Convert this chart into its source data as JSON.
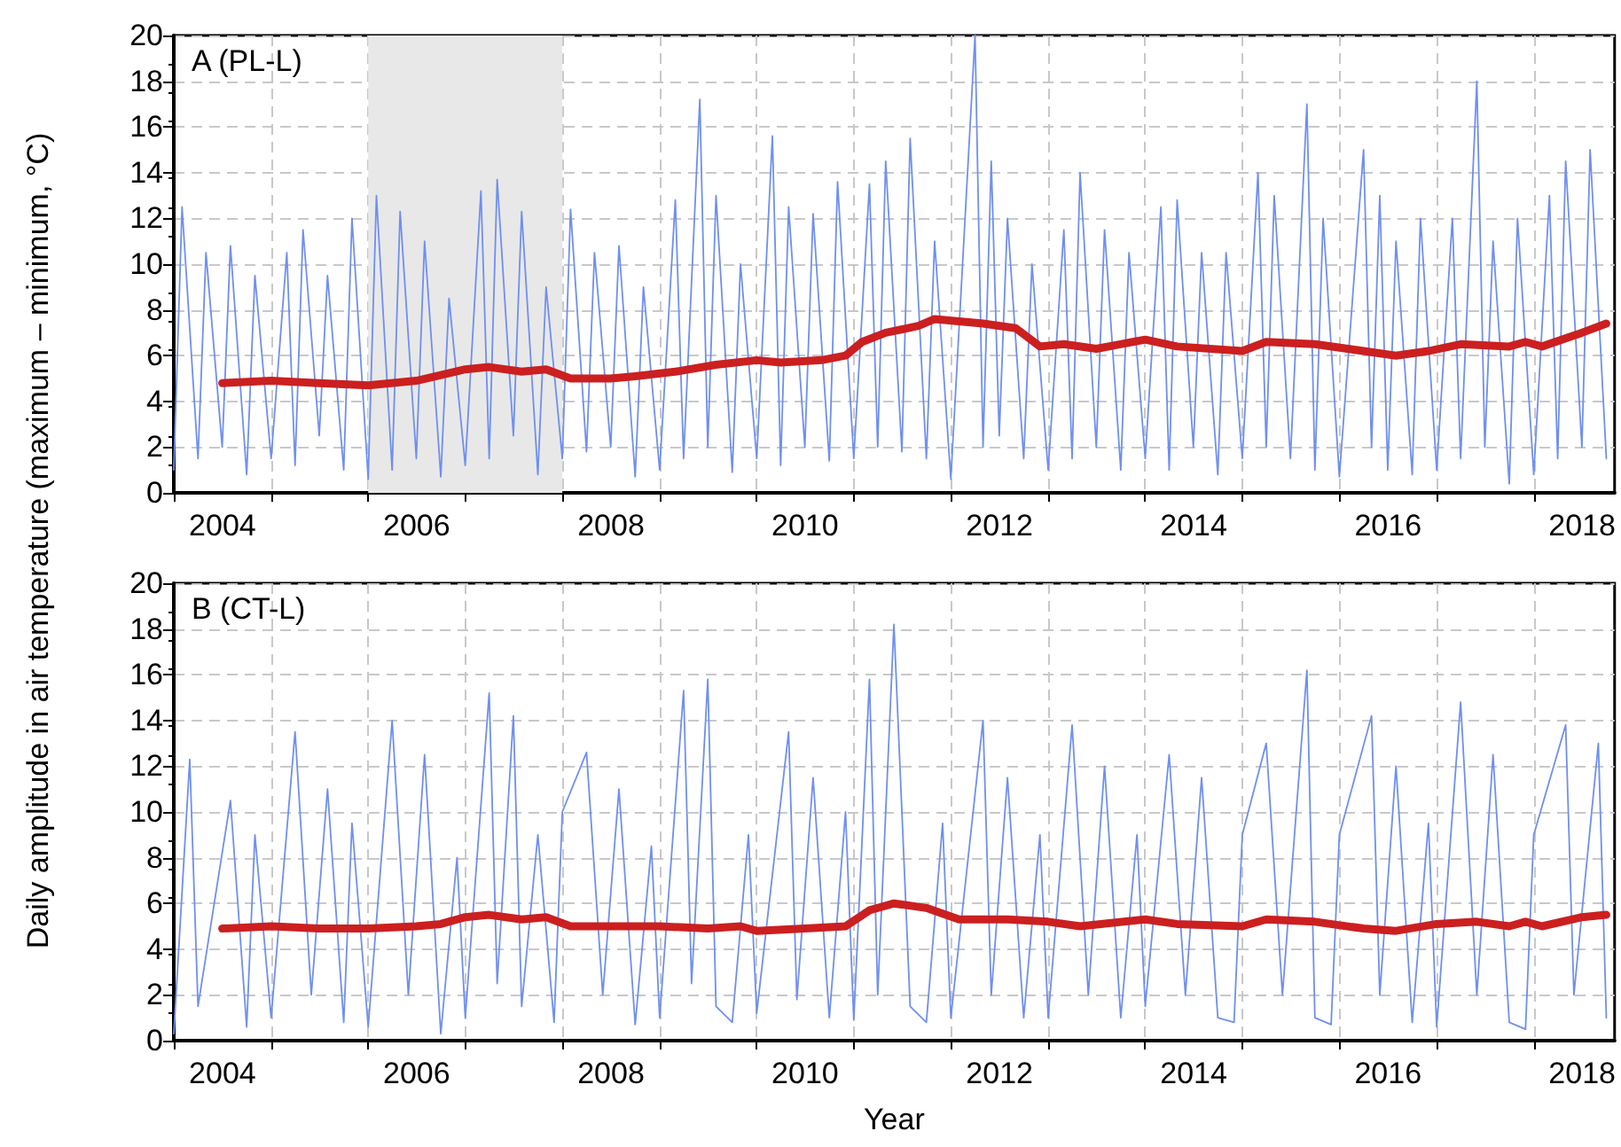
{
  "chart_data": [
    {
      "type": "line",
      "ylabel": "Daily amplitude in air temperature (maximum – minimum, °C)",
      "annotations": [
        "A (PL-L)"
      ],
      "xlim": [
        "2004-01-01",
        "2018-11-01"
      ],
      "ylim": [
        0,
        20
      ],
      "yticks": [
        0,
        2,
        4,
        6,
        8,
        10,
        12,
        14,
        16,
        18,
        20
      ],
      "xticks": [
        {
          "value": "2004-01-01",
          "label": null
        },
        {
          "value": "2004-07-02",
          "label": "2004"
        },
        {
          "value": "2005-01-01",
          "label": null
        },
        {
          "value": "2006-01-01",
          "label": null
        },
        {
          "value": "2006-07-02",
          "label": "2006"
        },
        {
          "value": "2007-01-01",
          "label": null
        },
        {
          "value": "2008-01-01",
          "label": null
        },
        {
          "value": "2008-07-02",
          "label": "2008"
        },
        {
          "value": "2009-01-01",
          "label": null
        },
        {
          "value": "2010-01-01",
          "label": null
        },
        {
          "value": "2010-07-02",
          "label": "2010"
        },
        {
          "value": "2011-01-01",
          "label": null
        },
        {
          "value": "2012-01-01",
          "label": null
        },
        {
          "value": "2012-07-02",
          "label": "2012"
        },
        {
          "value": "2013-01-01",
          "label": null
        },
        {
          "value": "2014-01-01",
          "label": null
        },
        {
          "value": "2014-07-02",
          "label": "2014"
        },
        {
          "value": "2015-01-01",
          "label": null
        },
        {
          "value": "2016-01-01",
          "label": null
        },
        {
          "value": "2016-07-02",
          "label": "2016"
        },
        {
          "value": "2017-01-01",
          "label": null
        },
        {
          "value": "2018-01-01",
          "label": null
        },
        {
          "value": "2018-07-02",
          "label": "2018"
        }
      ],
      "grid": true,
      "marker": "none",
      "line_style": "solid",
      "bands": [
        {
          "axis": "x",
          "from": "2006-01-01",
          "to": "2008-01-01",
          "color": "#e8e8e8"
        }
      ],
      "series": [
        {
          "color": "#6f8ff0",
          "x": [
            "2004-01",
            "2004-02",
            "2004-04",
            "2004-05",
            "2004-07",
            "2004-08",
            "2004-10",
            "2004-11",
            "2005-01",
            "2005-03",
            "2005-04",
            "2005-05",
            "2005-07",
            "2005-08",
            "2005-10",
            "2005-11",
            "2006-01",
            "2006-02",
            "2006-04",
            "2006-05",
            "2006-07",
            "2006-08",
            "2006-10",
            "2006-11",
            "2007-01",
            "2007-03",
            "2007-04",
            "2007-05",
            "2007-07",
            "2007-08",
            "2007-10",
            "2007-11",
            "2008-01",
            "2008-02",
            "2008-04",
            "2008-05",
            "2008-07",
            "2008-08",
            "2008-10",
            "2008-11",
            "2009-01",
            "2009-03",
            "2009-04",
            "2009-06",
            "2009-07",
            "2009-08",
            "2009-10",
            "2009-11",
            "2010-01",
            "2010-03",
            "2010-04",
            "2010-05",
            "2010-07",
            "2010-08",
            "2010-10",
            "2010-11",
            "2011-01",
            "2011-03",
            "2011-04",
            "2011-05",
            "2011-07",
            "2011-08",
            "2011-10",
            "2011-11",
            "2012-01",
            "2012-04",
            "2012-05",
            "2012-06",
            "2012-07",
            "2012-08",
            "2012-10",
            "2012-11",
            "2013-01",
            "2013-03",
            "2013-04",
            "2013-05",
            "2013-07",
            "2013-08",
            "2013-10",
            "2013-11",
            "2014-01",
            "2014-03",
            "2014-04",
            "2014-05",
            "2014-07",
            "2014-08",
            "2014-10",
            "2014-11",
            "2015-01",
            "2015-03",
            "2015-04",
            "2015-05",
            "2015-07",
            "2015-09",
            "2015-10",
            "2015-11",
            "2016-01",
            "2016-04",
            "2016-05",
            "2016-06",
            "2016-07",
            "2016-08",
            "2016-10",
            "2016-11",
            "2017-01",
            "2017-03",
            "2017-04",
            "2017-06",
            "2017-07",
            "2017-08",
            "2017-10",
            "2017-11",
            "2018-01",
            "2018-03",
            "2018-04",
            "2018-05",
            "2018-07",
            "2018-08",
            "2018-10"
          ],
          "values": [
            1.0,
            12.5,
            1.5,
            10.5,
            2.0,
            10.8,
            0.8,
            9.5,
            1.5,
            10.5,
            1.2,
            11.5,
            2.5,
            9.5,
            1.0,
            12.0,
            0.6,
            13.0,
            1.0,
            12.3,
            1.5,
            11.0,
            0.7,
            8.5,
            1.2,
            13.2,
            1.5,
            13.7,
            2.5,
            12.3,
            0.8,
            9.0,
            1.5,
            12.4,
            1.8,
            10.5,
            2.0,
            10.8,
            0.7,
            9.0,
            1.0,
            12.8,
            1.5,
            17.2,
            2.0,
            13.0,
            0.9,
            10.0,
            1.5,
            15.6,
            1.2,
            12.5,
            2.0,
            12.2,
            1.4,
            13.6,
            1.5,
            13.5,
            2.0,
            14.5,
            1.8,
            15.5,
            1.5,
            11.0,
            0.6,
            20.0,
            2.0,
            14.5,
            2.5,
            12.0,
            1.5,
            10.0,
            1.0,
            11.5,
            1.5,
            14.0,
            2.0,
            11.5,
            1.0,
            10.5,
            1.5,
            12.5,
            1.0,
            12.8,
            2.0,
            10.5,
            0.8,
            10.5,
            1.5,
            14.0,
            2.0,
            13.0,
            1.5,
            17.0,
            1.0,
            12.0,
            0.7,
            15.0,
            2.0,
            13.0,
            1.0,
            11.0,
            0.8,
            12.0,
            1.0,
            12.0,
            1.5,
            18.0,
            2.0,
            11.0,
            0.4,
            12.0,
            0.8,
            13.0,
            1.5,
            14.5,
            2.0,
            15.0,
            1.5
          ]
        },
        {
          "color": "#cc1f1f",
          "x": [
            "2004-07",
            "2005-01",
            "2005-07",
            "2006-01",
            "2006-07",
            "2007-01",
            "2007-04",
            "2007-08",
            "2007-11",
            "2008-02",
            "2008-07",
            "2008-10",
            "2009-03",
            "2009-08",
            "2010-01",
            "2010-04",
            "2010-09",
            "2010-12",
            "2011-02",
            "2011-05",
            "2011-09",
            "2011-11",
            "2012-05",
            "2012-09",
            "2012-12",
            "2013-03",
            "2013-07",
            "2014-01",
            "2014-05",
            "2015-01",
            "2015-04",
            "2015-10",
            "2016-04",
            "2016-08",
            "2016-12",
            "2017-04",
            "2017-10",
            "2017-12",
            "2018-02",
            "2018-07",
            "2018-10"
          ],
          "values": [
            4.8,
            4.9,
            4.8,
            4.7,
            4.9,
            5.4,
            5.5,
            5.3,
            5.4,
            5.0,
            5.0,
            5.1,
            5.3,
            5.6,
            5.8,
            5.7,
            5.8,
            6.0,
            6.6,
            7.0,
            7.3,
            7.6,
            7.4,
            7.2,
            6.4,
            6.5,
            6.3,
            6.7,
            6.4,
            6.2,
            6.6,
            6.5,
            6.2,
            6.0,
            6.2,
            6.5,
            6.4,
            6.6,
            6.4,
            7.0,
            7.4
          ]
        }
      ]
    },
    {
      "type": "line",
      "xlabel": "Year",
      "annotations": [
        "B (CT-L)"
      ],
      "xlim": [
        "2004-01-01",
        "2018-11-01"
      ],
      "ylim": [
        0,
        20
      ],
      "yticks": [
        0,
        2,
        4,
        6,
        8,
        10,
        12,
        14,
        16,
        18,
        20
      ],
      "xticks": [
        {
          "value": "2004-01-01",
          "label": null
        },
        {
          "value": "2004-07-02",
          "label": "2004"
        },
        {
          "value": "2005-01-01",
          "label": null
        },
        {
          "value": "2006-01-01",
          "label": null
        },
        {
          "value": "2006-07-02",
          "label": "2006"
        },
        {
          "value": "2007-01-01",
          "label": null
        },
        {
          "value": "2008-01-01",
          "label": null
        },
        {
          "value": "2008-07-02",
          "label": "2008"
        },
        {
          "value": "2009-01-01",
          "label": null
        },
        {
          "value": "2010-01-01",
          "label": null
        },
        {
          "value": "2010-07-02",
          "label": "2010"
        },
        {
          "value": "2011-01-01",
          "label": null
        },
        {
          "value": "2012-01-01",
          "label": null
        },
        {
          "value": "2012-07-02",
          "label": "2012"
        },
        {
          "value": "2013-01-01",
          "label": null
        },
        {
          "value": "2014-01-01",
          "label": null
        },
        {
          "value": "2014-07-02",
          "label": "2014"
        },
        {
          "value": "2015-01-01",
          "label": null
        },
        {
          "value": "2016-01-01",
          "label": null
        },
        {
          "value": "2016-07-02",
          "label": "2016"
        },
        {
          "value": "2017-01-01",
          "label": null
        },
        {
          "value": "2018-01-01",
          "label": null
        },
        {
          "value": "2018-07-02",
          "label": "2018"
        }
      ],
      "grid": true,
      "marker": "none",
      "line_style": "solid",
      "series": [
        {
          "color": "#6f8ff0",
          "x": [
            "2004-01",
            "2004-03",
            "2004-04",
            "2004-08",
            "2004-10",
            "2004-11",
            "2005-01",
            "2005-04",
            "2005-06",
            "2005-08",
            "2005-10",
            "2005-11",
            "2006-01",
            "2006-04",
            "2006-06",
            "2006-08",
            "2006-10",
            "2006-12",
            "2007-01",
            "2007-04",
            "2007-05",
            "2007-07",
            "2007-08",
            "2007-10",
            "2007-12",
            "2008-01",
            "2008-04",
            "2008-06",
            "2008-08",
            "2008-10",
            "2008-12",
            "2009-01",
            "2009-04",
            "2009-05",
            "2009-07",
            "2009-08",
            "2009-10",
            "2009-12",
            "2010-01",
            "2010-05",
            "2010-06",
            "2010-08",
            "2010-10",
            "2010-12",
            "2011-01",
            "2011-03",
            "2011-04",
            "2011-06",
            "2011-08",
            "2011-10",
            "2011-12",
            "2012-01",
            "2012-05",
            "2012-06",
            "2012-08",
            "2012-10",
            "2012-12",
            "2013-01",
            "2013-04",
            "2013-06",
            "2013-08",
            "2013-10",
            "2013-12",
            "2014-01",
            "2014-04",
            "2014-06",
            "2014-08",
            "2014-10",
            "2014-12",
            "2015-01",
            "2015-04",
            "2015-06",
            "2015-09",
            "2015-10",
            "2015-12",
            "2016-01",
            "2016-05",
            "2016-06",
            "2016-08",
            "2016-10",
            "2016-12",
            "2017-01",
            "2017-04",
            "2017-06",
            "2017-08",
            "2017-10",
            "2017-12",
            "2018-01",
            "2018-05",
            "2018-06",
            "2018-09",
            "2018-10"
          ],
          "values": [
            0.3,
            12.3,
            1.5,
            10.5,
            0.6,
            9.0,
            1.0,
            13.5,
            2.0,
            11.0,
            0.8,
            9.5,
            0.6,
            14.0,
            2.0,
            12.5,
            0.3,
            8.0,
            1.0,
            15.2,
            2.5,
            14.2,
            1.5,
            9.0,
            0.8,
            10.0,
            12.6,
            2.0,
            11.0,
            0.7,
            8.5,
            1.0,
            15.3,
            2.5,
            15.8,
            1.5,
            0.8,
            9.0,
            1.2,
            13.5,
            1.8,
            11.5,
            1.0,
            10.0,
            0.9,
            15.8,
            2.0,
            18.2,
            1.5,
            0.8,
            9.5,
            1.0,
            14.0,
            2.0,
            11.5,
            1.0,
            9.0,
            1.0,
            13.8,
            2.0,
            12.0,
            1.0,
            9.0,
            1.5,
            12.5,
            2.0,
            11.5,
            1.0,
            0.8,
            9.0,
            13.0,
            2.0,
            16.2,
            1.0,
            0.7,
            9.0,
            14.2,
            2.0,
            12.0,
            0.8,
            9.5,
            0.6,
            14.8,
            2.0,
            12.5,
            0.8,
            0.5,
            9.0,
            13.8,
            2.0,
            13.0,
            1.0
          ]
        },
        {
          "color": "#cc1f1f",
          "x": [
            "2004-07",
            "2005-01",
            "2005-07",
            "2006-01",
            "2006-07",
            "2006-10",
            "2007-01",
            "2007-04",
            "2007-08",
            "2007-11",
            "2008-02",
            "2008-07",
            "2009-01",
            "2009-07",
            "2009-11",
            "2010-01",
            "2010-07",
            "2010-12",
            "2011-03",
            "2011-06",
            "2011-10",
            "2012-02",
            "2012-08",
            "2013-01",
            "2013-05",
            "2014-01",
            "2014-05",
            "2015-01",
            "2015-04",
            "2015-10",
            "2016-04",
            "2016-08",
            "2017-01",
            "2017-06",
            "2017-10",
            "2017-12",
            "2018-02",
            "2018-07",
            "2018-10"
          ],
          "values": [
            4.9,
            5.0,
            4.9,
            4.9,
            5.0,
            5.1,
            5.4,
            5.5,
            5.3,
            5.4,
            5.0,
            5.0,
            5.0,
            4.9,
            5.0,
            4.8,
            4.9,
            5.0,
            5.7,
            6.0,
            5.8,
            5.3,
            5.3,
            5.2,
            5.0,
            5.3,
            5.1,
            5.0,
            5.3,
            5.2,
            4.9,
            4.8,
            5.1,
            5.2,
            5.0,
            5.2,
            5.0,
            5.4,
            5.5
          ]
        }
      ]
    }
  ]
}
